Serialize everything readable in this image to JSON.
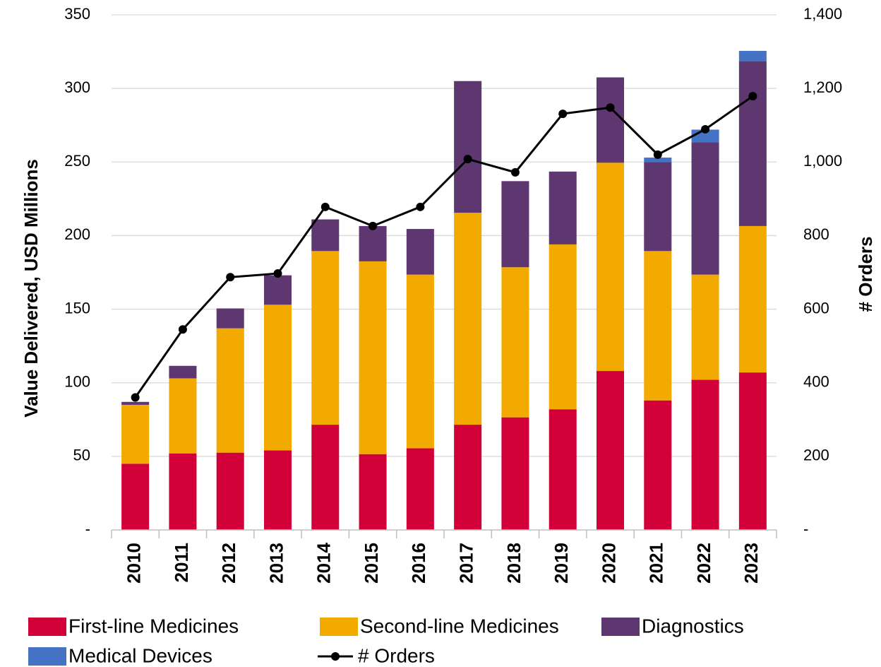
{
  "chart_data": {
    "type": "bar",
    "stacked": true,
    "categories": [
      "2010",
      "2011",
      "2012",
      "2013",
      "2014",
      "2015",
      "2016",
      "2017",
      "2018",
      "2019",
      "2020",
      "2021",
      "2022",
      "2023"
    ],
    "series": [
      {
        "name": "First-line Medicines",
        "color": "#d20038",
        "values": [
          45,
          52,
          52.5,
          54,
          71.5,
          51.5,
          55.5,
          71.5,
          76.5,
          82,
          108,
          88,
          102,
          107
        ]
      },
      {
        "name": "Second-line Medicines",
        "color": "#f2a900",
        "values": [
          40,
          51,
          84.5,
          99,
          118,
          131,
          118,
          144,
          102,
          112,
          141.5,
          101.5,
          71.5,
          99.5
        ]
      },
      {
        "name": "Diagnostics",
        "color": "#5e3670",
        "values": [
          2,
          8.5,
          13.5,
          20,
          21.5,
          24,
          31,
          89.5,
          58.5,
          49.5,
          58,
          60.5,
          90,
          112
        ]
      },
      {
        "name": "Medical Devices",
        "color": "#4472c4",
        "values": [
          0,
          0,
          0,
          0,
          0,
          0,
          0,
          0,
          0,
          0,
          0,
          3,
          8.5,
          7
        ]
      },
      {
        "name": "# Orders",
        "type": "line",
        "axis": "y2",
        "color": "#000000",
        "values": [
          360,
          545,
          687,
          697,
          878,
          826,
          878,
          1008,
          972,
          1131,
          1148,
          1020,
          1089,
          1179
        ]
      }
    ],
    "ylabel": "Value Delivered, USD Millions",
    "y2label": "# Orders",
    "ylim": [
      0,
      350
    ],
    "yticks": [
      {
        "value": 0,
        "label": "-"
      },
      50,
      100,
      150,
      200,
      250,
      300,
      350
    ],
    "y2lim": [
      0,
      1400
    ],
    "y2ticks": [
      {
        "value": 0,
        "label": "-"
      },
      200,
      400,
      600,
      800,
      {
        "value": 1000,
        "label": "1,000"
      },
      {
        "value": 1200,
        "label": "1,200"
      },
      {
        "value": 1400,
        "label": "1,400"
      }
    ],
    "grid": true,
    "legend": "bottom"
  }
}
